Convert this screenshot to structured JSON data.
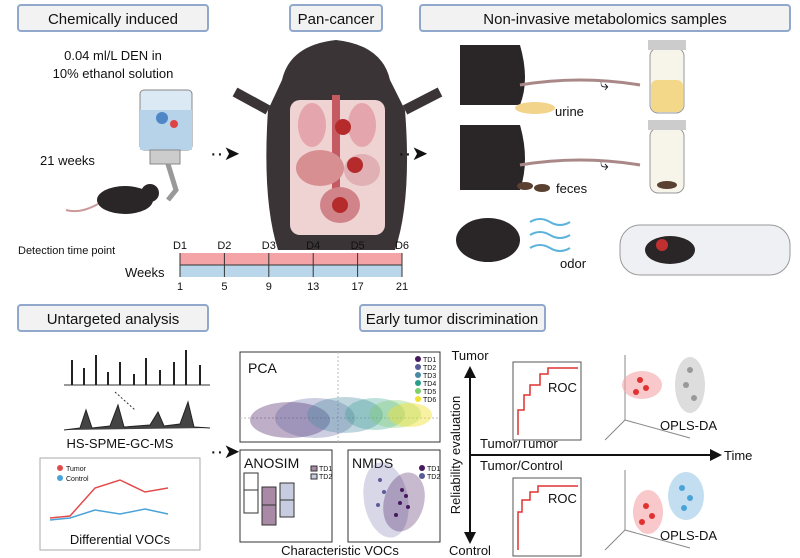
{
  "sections": {
    "chemically_induced": "Chemically induced",
    "pan_cancer": "Pan-cancer",
    "noninvasive": "Non-invasive metabolomics samples",
    "untargeted": "Untargeted analysis",
    "early_tumor": "Early tumor discrimination"
  },
  "induction": {
    "dose_line1": "0.04 ml/L DEN in",
    "dose_line2": "10% ethanol solution",
    "duration": "21 weeks"
  },
  "timeline": {
    "detection_label": "Detection time point",
    "weeks_label": "Weeks",
    "points": [
      "D1",
      "D2",
      "D3",
      "D4",
      "D5",
      "D6"
    ],
    "weeks": [
      "1",
      "5",
      "9",
      "13",
      "17",
      "21"
    ],
    "colors": {
      "detection": "#f4a3a6",
      "weeks": "#b9d6ea"
    }
  },
  "samples": {
    "urine": "urine",
    "feces": "feces",
    "odor": "odor"
  },
  "analysis": {
    "method": "HS-SPME-GC-MS",
    "legend_tumor": "Tumor",
    "legend_control": "Control",
    "differential": "Differential VOCs",
    "characteristic": "Characteristic VOCs",
    "pca": "PCA",
    "anosim": "ANOSIM",
    "nmds": "NMDS",
    "groups": [
      "TD1",
      "TD2",
      "TD3",
      "TD4",
      "TD5",
      "TD6"
    ],
    "group_colors": [
      "#46185e",
      "#5a5c9a",
      "#4a8aa3",
      "#2a9d8a",
      "#7ccf6a",
      "#f0e030"
    ]
  },
  "evaluation": {
    "axis_top": "Tumor",
    "axis_bottom": "Control",
    "axis_y": "Reliability evaluation",
    "axis_x": "Time",
    "tumor_tumor": "Tumor/Tumor",
    "tumor_control": "Tumor/Control",
    "roc": "ROC",
    "oplsda": "OPLS-DA"
  }
}
